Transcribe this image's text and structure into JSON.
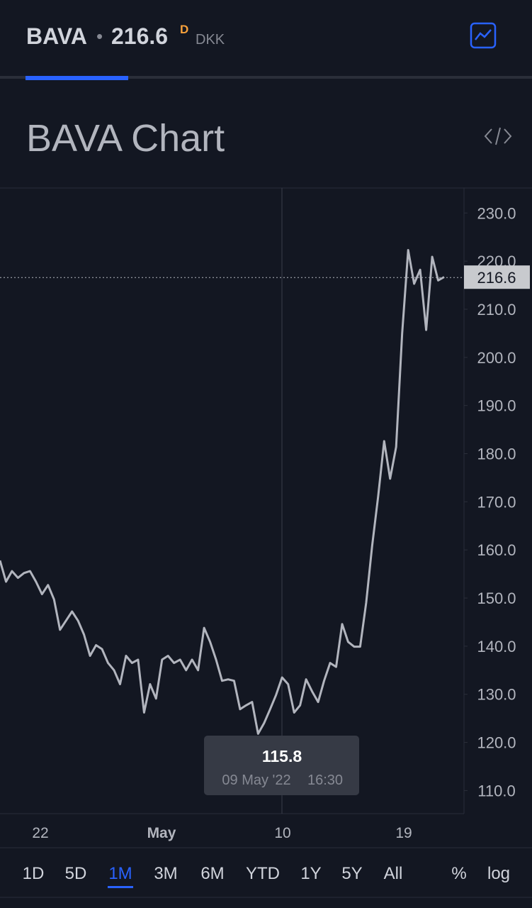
{
  "header": {
    "symbol": "BAVA",
    "separator": "•",
    "price": "216.6",
    "price_flag": "D",
    "currency": "DKK"
  },
  "chart_data": {
    "type": "line",
    "title": "BAVA Chart",
    "color": "#b2b5be",
    "values": [
      157.8,
      153.4,
      155.6,
      154.2,
      155.2,
      155.6,
      153.4,
      150.8,
      152.7,
      149.7,
      143.4,
      145.3,
      147.2,
      145.3,
      142.4,
      138.0,
      140.2,
      139.4,
      136.5,
      135.0,
      132.1,
      138.0,
      136.5,
      137.2,
      126.2,
      132.1,
      129.1,
      137.2,
      138.0,
      136.5,
      137.2,
      135.0,
      137.2,
      135.0,
      143.8,
      140.9,
      137.2,
      132.8,
      133.1,
      132.8,
      126.9,
      127.7,
      128.4,
      121.8,
      124.0,
      126.9,
      129.9,
      133.5,
      132.1,
      126.2,
      127.7,
      133.1,
      130.6,
      128.4,
      132.8,
      136.5,
      135.7,
      144.6,
      140.9,
      139.9,
      139.9,
      149.0,
      160.8,
      171.1,
      182.6,
      174.8,
      181.4,
      205.0,
      222.3,
      215.3,
      218.2,
      205.7,
      220.9,
      216.0,
      216.7
    ],
    "x_labels": [
      "22",
      "May",
      "10",
      "19"
    ],
    "ylim": [
      105.2,
      235.2
    ],
    "yticks": [
      {
        "value": 110,
        "label": "110.0"
      },
      {
        "value": 120,
        "label": "120.0"
      },
      {
        "value": 130,
        "label": "130.0"
      },
      {
        "value": 140,
        "label": "140.0"
      },
      {
        "value": 150,
        "label": "150.0"
      },
      {
        "value": 160,
        "label": "160.0"
      },
      {
        "value": 170,
        "label": "170.0"
      },
      {
        "value": 180,
        "label": "180.0"
      },
      {
        "value": 190,
        "label": "190.0"
      },
      {
        "value": 200,
        "label": "200.0"
      },
      {
        "value": 210,
        "label": "210.0"
      },
      {
        "value": 220,
        "label": "220.0"
      },
      {
        "value": 230,
        "label": "230.0"
      }
    ],
    "last_price": 216.6,
    "tooltip": {
      "value": 115.8,
      "date": "09 May '22",
      "time": "16:30"
    }
  },
  "toolbar": {
    "ranges": [
      "1D",
      "5D",
      "1M",
      "3M",
      "6M",
      "YTD",
      "1Y",
      "5Y",
      "All"
    ],
    "selected_range": 2,
    "options": [
      "%",
      "log"
    ]
  }
}
